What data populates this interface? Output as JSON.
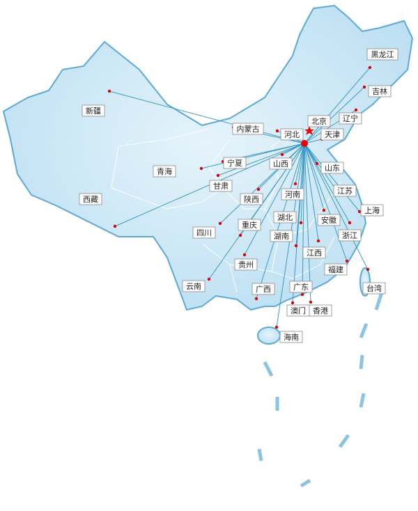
{
  "provinces": [
    {
      "label": "黑龙江"
    },
    {
      "label": "吉林"
    },
    {
      "label": "辽宁"
    },
    {
      "label": "北京"
    },
    {
      "label": "天津"
    },
    {
      "label": "河北"
    },
    {
      "label": "内蒙古"
    },
    {
      "label": "新疆"
    },
    {
      "label": "宁夏"
    },
    {
      "label": "山西"
    },
    {
      "label": "山东"
    },
    {
      "label": "青海"
    },
    {
      "label": "甘肃"
    },
    {
      "label": "河南"
    },
    {
      "label": "江苏"
    },
    {
      "label": "陕西"
    },
    {
      "label": "上海"
    },
    {
      "label": "西藏"
    },
    {
      "label": "湖北"
    },
    {
      "label": "安徽"
    },
    {
      "label": "重庆"
    },
    {
      "label": "四川"
    },
    {
      "label": "浙江"
    },
    {
      "label": "湖南"
    },
    {
      "label": "江西"
    },
    {
      "label": "贵州"
    },
    {
      "label": "福建"
    },
    {
      "label": "云南"
    },
    {
      "label": "广西"
    },
    {
      "label": "广东"
    },
    {
      "label": "台湾"
    },
    {
      "label": "澳门"
    },
    {
      "label": "香港"
    },
    {
      "label": "海南"
    }
  ]
}
